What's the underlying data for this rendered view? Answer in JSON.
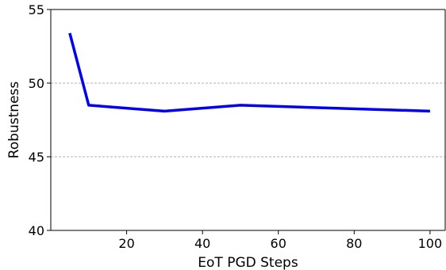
{
  "chart_data": {
    "type": "line",
    "title": "",
    "xlabel": "EoT PGD Steps",
    "ylabel": "Robustness",
    "xlim": [
      0,
      104
    ],
    "ylim": [
      40,
      55
    ],
    "xticks": [
      20,
      40,
      60,
      80,
      100
    ],
    "yticks": [
      40,
      45,
      50,
      55
    ],
    "grid": "horizontal dashed at y ticks",
    "legend": "none",
    "series": [
      {
        "color": "#0000ee",
        "x": [
          5,
          10,
          30,
          50,
          100
        ],
        "y": [
          53.4,
          48.5,
          48.1,
          48.5,
          48.1
        ]
      }
    ]
  }
}
